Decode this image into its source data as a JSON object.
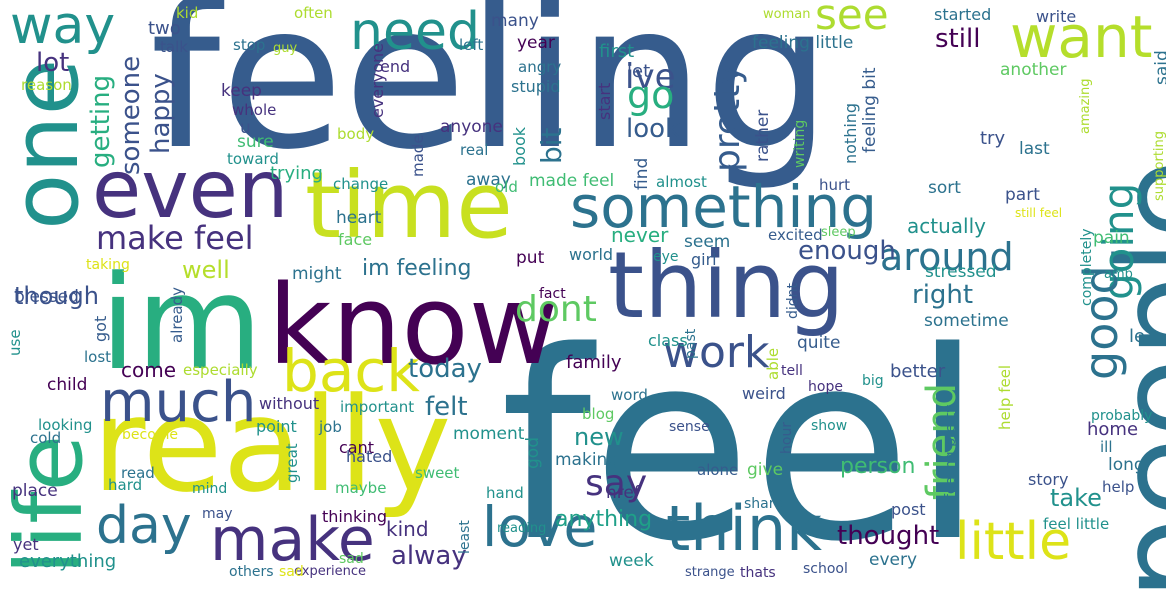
{
  "palette": {
    "dark_purple": "#440154",
    "purple": "#46327e",
    "indigo": "#3b528b",
    "blue": "#365c8d",
    "steel": "#2c728e",
    "teal": "#21918c",
    "sea": "#1fa088",
    "green": "#28ae80",
    "mid_green": "#3fbc73",
    "light_green": "#5ec962",
    "lime": "#addc30",
    "yellow": "#dde318"
  },
  "words": [
    {
      "text": "feeling",
      "color": "#365c8d",
      "vertical": false
    },
    {
      "text": "feel",
      "color": "#2c728e",
      "vertical": false
    },
    {
      "text": "people",
      "color": "#2c728e",
      "vertical": true
    },
    {
      "text": "really",
      "color": "#dde318",
      "vertical": false
    },
    {
      "text": "know",
      "color": "#440154",
      "vertical": false
    },
    {
      "text": "im",
      "color": "#28ae80",
      "vertical": false
    },
    {
      "text": "time",
      "color": "#c8e020",
      "vertical": false
    },
    {
      "text": "thing",
      "color": "#3b528b",
      "vertical": false
    },
    {
      "text": "one",
      "color": "#21918c",
      "vertical": true
    },
    {
      "text": "life",
      "color": "#28ae80",
      "vertical": true
    },
    {
      "text": "even",
      "color": "#46327e",
      "vertical": false
    },
    {
      "text": "something",
      "color": "#2c728e",
      "vertical": false
    },
    {
      "text": "want",
      "color": "#b5de2b",
      "vertical": false
    },
    {
      "text": "need",
      "color": "#21918c",
      "vertical": false
    },
    {
      "text": "way",
      "color": "#21918c",
      "vertical": false
    },
    {
      "text": "see",
      "color": "#addc30",
      "vertical": false
    },
    {
      "text": "going",
      "color": "#21918c",
      "vertical": true
    },
    {
      "text": "back",
      "color": "#dde318",
      "vertical": false
    },
    {
      "text": "much",
      "color": "#3b528b",
      "vertical": false
    },
    {
      "text": "make",
      "color": "#46327e",
      "vertical": false
    },
    {
      "text": "day",
      "color": "#2c728e",
      "vertical": false
    },
    {
      "text": "love",
      "color": "#2c728e",
      "vertical": false
    },
    {
      "text": "think",
      "color": "#2c728e",
      "vertical": false
    },
    {
      "text": "little",
      "color": "#dde318",
      "vertical": false
    },
    {
      "text": "work",
      "color": "#3b528b",
      "vertical": false
    },
    {
      "text": "good",
      "color": "#2c728e",
      "vertical": true
    },
    {
      "text": "friend",
      "color": "#5ec962",
      "vertical": true
    },
    {
      "text": "around",
      "color": "#2c728e",
      "vertical": false
    },
    {
      "text": "make feel",
      "color": "#46327e",
      "vertical": false
    },
    {
      "text": "ive",
      "color": "#3b528b",
      "vertical": false
    },
    {
      "text": "go",
      "color": "#28ae80",
      "vertical": false
    },
    {
      "text": "dont",
      "color": "#5ec962",
      "vertical": false
    },
    {
      "text": "say",
      "color": "#46327e",
      "vertical": false
    },
    {
      "text": "someone",
      "color": "#3b528b",
      "vertical": true
    },
    {
      "text": "pretty",
      "color": "#365c8d",
      "vertical": true
    },
    {
      "text": "im feeling",
      "color": "#2c728e",
      "vertical": false
    },
    {
      "text": "today",
      "color": "#2c728e",
      "vertical": false
    },
    {
      "text": "felt",
      "color": "#2c728e",
      "vertical": false
    },
    {
      "text": "alway",
      "color": "#46327e",
      "vertical": false
    },
    {
      "text": "thought",
      "color": "#440154",
      "vertical": false
    },
    {
      "text": "right",
      "color": "#2c728e",
      "vertical": false
    },
    {
      "text": "look",
      "color": "#365c8d",
      "vertical": false
    },
    {
      "text": "lot",
      "color": "#46327e",
      "vertical": false
    },
    {
      "text": "bit",
      "color": "#2c728e",
      "vertical": true
    },
    {
      "text": "getting",
      "color": "#28ae80",
      "vertical": true
    },
    {
      "text": "happy",
      "color": "#3b528b",
      "vertical": true
    },
    {
      "text": "still",
      "color": "#440154",
      "vertical": false
    },
    {
      "text": "enough",
      "color": "#3b528b",
      "vertical": false
    },
    {
      "text": "well",
      "color": "#b5de2b",
      "vertical": false
    },
    {
      "text": "though",
      "color": "#3b528b",
      "vertical": false
    },
    {
      "text": "take",
      "color": "#21918c",
      "vertical": false
    },
    {
      "text": "new",
      "color": "#21918c",
      "vertical": false
    },
    {
      "text": "come",
      "color": "#440154",
      "vertical": false
    },
    {
      "text": "person",
      "color": "#3fbc73",
      "vertical": false
    },
    {
      "text": "anything",
      "color": "#1fa088",
      "vertical": false
    },
    {
      "text": "actually",
      "color": "#21918c",
      "vertical": false
    },
    {
      "text": "kind",
      "color": "#46327e",
      "vertical": false
    },
    {
      "text": "feeling little",
      "color": "#2c728e",
      "vertical": false
    },
    {
      "text": "year",
      "color": "#440154",
      "vertical": false
    },
    {
      "text": "never",
      "color": "#28ae80",
      "vertical": false
    },
    {
      "text": "family",
      "color": "#440154",
      "vertical": false
    },
    {
      "text": "everything",
      "color": "#21918c",
      "vertical": false
    },
    {
      "text": "trying",
      "color": "#28ae80",
      "vertical": false
    },
    {
      "text": "two",
      "color": "#3b528b",
      "vertical": false
    },
    {
      "text": "stressed",
      "color": "#21918c",
      "vertical": false
    },
    {
      "text": "sometime",
      "color": "#2c728e",
      "vertical": false
    },
    {
      "text": "made feel",
      "color": "#3fbc73",
      "vertical": false
    },
    {
      "text": "quite",
      "color": "#365c8d",
      "vertical": false
    },
    {
      "text": "better",
      "color": "#3b528b",
      "vertical": false
    },
    {
      "text": "home",
      "color": "#46327e",
      "vertical": false
    },
    {
      "text": "write",
      "color": "#3b528b",
      "vertical": false
    },
    {
      "text": "started",
      "color": "#2c728e",
      "vertical": false
    },
    {
      "text": "another",
      "color": "#5ec962",
      "vertical": false
    },
    {
      "text": "first",
      "color": "#21918c",
      "vertical": false
    },
    {
      "text": "let",
      "color": "#3b528b",
      "vertical": false
    },
    {
      "text": "last",
      "color": "#2c728e",
      "vertical": false
    },
    {
      "text": "part",
      "color": "#3b528b",
      "vertical": false
    },
    {
      "text": "sort",
      "color": "#2c728e",
      "vertical": false
    },
    {
      "text": "try",
      "color": "#3b528b",
      "vertical": false
    },
    {
      "text": "pain",
      "color": "#3fbc73",
      "vertical": false
    },
    {
      "text": "long",
      "color": "#2c728e",
      "vertical": false
    },
    {
      "text": "story",
      "color": "#3b528b",
      "vertical": false
    },
    {
      "text": "post",
      "color": "#3b528b",
      "vertical": false
    },
    {
      "text": "every",
      "color": "#2c728e",
      "vertical": false
    },
    {
      "text": "week",
      "color": "#21918c",
      "vertical": false
    },
    {
      "text": "href",
      "color": "#46327e",
      "vertical": false
    },
    {
      "text": "girl",
      "color": "#365c8d",
      "vertical": false
    },
    {
      "text": "seem",
      "color": "#2c728e",
      "vertical": false
    },
    {
      "text": "world",
      "color": "#2c728e",
      "vertical": false
    },
    {
      "text": "put",
      "color": "#440154",
      "vertical": false
    },
    {
      "text": "might",
      "color": "#2c728e",
      "vertical": false
    },
    {
      "text": "heart",
      "color": "#2c728e",
      "vertical": false
    },
    {
      "text": "face",
      "color": "#5ec962",
      "vertical": false
    },
    {
      "text": "away",
      "color": "#2c728e",
      "vertical": false
    },
    {
      "text": "old",
      "color": "#3fbc73",
      "vertical": false
    },
    {
      "text": "hurt",
      "color": "#3b528b",
      "vertical": false
    },
    {
      "text": "almost",
      "color": "#21918c",
      "vertical": false
    },
    {
      "text": "keep",
      "color": "#46327e",
      "vertical": false
    },
    {
      "text": "u",
      "color": "#3b528b",
      "vertical": false
    },
    {
      "text": "sure",
      "color": "#3fbc73",
      "vertical": false
    },
    {
      "text": "toward",
      "color": "#21918c",
      "vertical": false
    },
    {
      "text": "change",
      "color": "#21918c",
      "vertical": false
    },
    {
      "text": "child",
      "color": "#440154",
      "vertical": false
    },
    {
      "text": "place",
      "color": "#46327e",
      "vertical": false
    },
    {
      "text": "without",
      "color": "#46327e",
      "vertical": false
    },
    {
      "text": "point",
      "color": "#21918c",
      "vertical": false
    },
    {
      "text": "cant",
      "color": "#440154",
      "vertical": false
    },
    {
      "text": "moment",
      "color": "#21918c",
      "vertical": false
    },
    {
      "text": "making",
      "color": "#2c728e",
      "vertical": false
    },
    {
      "text": "give",
      "color": "#5ec962",
      "vertical": false
    },
    {
      "text": "hand",
      "color": "#21918c",
      "vertical": false
    },
    {
      "text": "thinking",
      "color": "#440154",
      "vertical": false
    },
    {
      "text": "yet",
      "color": "#46327e",
      "vertical": false
    },
    {
      "text": "hard",
      "color": "#21918c",
      "vertical": false
    },
    {
      "text": "read",
      "color": "#2c728e",
      "vertical": false
    },
    {
      "text": "looking",
      "color": "#21918c",
      "vertical": false
    },
    {
      "text": "cold",
      "color": "#2c728e",
      "vertical": false
    },
    {
      "text": "blessed",
      "color": "#3b528b",
      "vertical": false
    },
    {
      "text": "use",
      "color": "#21918c",
      "vertical": true
    },
    {
      "text": "got",
      "color": "#365c8d",
      "vertical": true
    },
    {
      "text": "lost",
      "color": "#2c728e",
      "vertical": false
    },
    {
      "text": "already",
      "color": "#365c8d",
      "vertical": true
    },
    {
      "text": "especially",
      "color": "#addc30",
      "vertical": false
    },
    {
      "text": "important",
      "color": "#21918c",
      "vertical": false
    },
    {
      "text": "sweet",
      "color": "#3fbc73",
      "vertical": false
    },
    {
      "text": "job",
      "color": "#2c728e",
      "vertical": false
    },
    {
      "text": "hated",
      "color": "#3b528b",
      "vertical": false
    },
    {
      "text": "maybe",
      "color": "#3fbc73",
      "vertical": false
    },
    {
      "text": "great",
      "color": "#21918c",
      "vertical": true
    },
    {
      "text": "mind",
      "color": "#21918c",
      "vertical": false
    },
    {
      "text": "may",
      "color": "#3b528b",
      "vertical": false
    },
    {
      "text": "sad",
      "color": "#5ec962",
      "vertical": false
    },
    {
      "text": "others",
      "color": "#2c728e",
      "vertical": false
    },
    {
      "text": "experience",
      "color": "#46327e",
      "vertical": false
    },
    {
      "text": "reading",
      "color": "#21918c",
      "vertical": false
    },
    {
      "text": "strange",
      "color": "#3b528b",
      "vertical": false
    },
    {
      "text": "thats",
      "color": "#46327e",
      "vertical": false
    },
    {
      "text": "school",
      "color": "#3b528b",
      "vertical": false
    },
    {
      "text": "share",
      "color": "#2c728e",
      "vertical": false
    },
    {
      "text": "alone",
      "color": "#365c8d",
      "vertical": false
    },
    {
      "text": "sense",
      "color": "#3b528b",
      "vertical": false
    },
    {
      "text": "show",
      "color": "#21918c",
      "vertical": false
    },
    {
      "text": "hour",
      "color": "#365c8d",
      "vertical": true
    },
    {
      "text": "weird",
      "color": "#3b528b",
      "vertical": false
    },
    {
      "text": "tell",
      "color": "#46327e",
      "vertical": false
    },
    {
      "text": "able",
      "color": "#addc30",
      "vertical": true
    },
    {
      "text": "didnt",
      "color": "#365c8d",
      "vertical": true
    },
    {
      "text": "big",
      "color": "#21918c",
      "vertical": false
    },
    {
      "text": "hope",
      "color": "#46327e",
      "vertical": false
    },
    {
      "text": "past",
      "color": "#2c728e",
      "vertical": true
    },
    {
      "text": "class",
      "color": "#21918c",
      "vertical": false
    },
    {
      "text": "eye",
      "color": "#21918c",
      "vertical": false
    },
    {
      "text": "fact",
      "color": "#440154",
      "vertical": false
    },
    {
      "text": "word",
      "color": "#2c728e",
      "vertical": false
    },
    {
      "text": "blog",
      "color": "#5ec962",
      "vertical": false
    },
    {
      "text": "god",
      "color": "#21918c",
      "vertical": true
    },
    {
      "text": "least",
      "color": "#2c728e",
      "vertical": true
    },
    {
      "text": "excited",
      "color": "#365c8d",
      "vertical": false
    },
    {
      "text": "sleep",
      "color": "#5ec962",
      "vertical": false
    },
    {
      "text": "completely",
      "color": "#21918c",
      "vertical": true
    },
    {
      "text": "help feel",
      "color": "#addc30",
      "vertical": true
    },
    {
      "text": "feeling pretty",
      "color": "#2c728e",
      "vertical": true
    },
    {
      "text": "probably",
      "color": "#21918c",
      "vertical": false
    },
    {
      "text": "ill",
      "color": "#2c728e",
      "vertical": false
    },
    {
      "text": "help",
      "color": "#3b528b",
      "vertical": false
    },
    {
      "text": "feel little",
      "color": "#21918c",
      "vertical": false
    },
    {
      "text": "said",
      "color": "#2c728e",
      "vertical": true
    },
    {
      "text": "le",
      "color": "#2c728e",
      "vertical": false
    },
    {
      "text": "amp",
      "color": "#21918c",
      "vertical": false
    },
    {
      "text": "still feel",
      "color": "#dde318",
      "vertical": false
    },
    {
      "text": "supporting",
      "color": "#addc30",
      "vertical": true
    },
    {
      "text": "amazing",
      "color": "#addc30",
      "vertical": true
    },
    {
      "text": "sad",
      "color": "#dde318",
      "vertical": false
    },
    {
      "text": "feeling bit",
      "color": "#365c8d",
      "vertical": true
    },
    {
      "text": "nothing",
      "color": "#2c728e",
      "vertical": true
    },
    {
      "text": "writing",
      "color": "#5ec962",
      "vertical": true
    },
    {
      "text": "rather",
      "color": "#3b528b",
      "vertical": true
    },
    {
      "text": "find",
      "color": "#365c8d",
      "vertical": true
    },
    {
      "text": "start",
      "color": "#46327e",
      "vertical": true
    },
    {
      "text": "angry",
      "color": "#2c728e",
      "vertical": false
    },
    {
      "text": "stupid",
      "color": "#2c728e",
      "vertical": false
    },
    {
      "text": "book",
      "color": "#21918c",
      "vertical": true
    },
    {
      "text": "real",
      "color": "#2c728e",
      "vertical": false
    },
    {
      "text": "anyone",
      "color": "#46327e",
      "vertical": false
    },
    {
      "text": "everyone",
      "color": "#46327e",
      "vertical": true
    },
    {
      "text": "made",
      "color": "#3b528b",
      "vertical": true
    },
    {
      "text": "end",
      "color": "#46327e",
      "vertical": false
    },
    {
      "text": "body",
      "color": "#addc30",
      "vertical": false
    },
    {
      "text": "whole",
      "color": "#46327e",
      "vertical": false
    },
    {
      "text": "many",
      "color": "#3b528b",
      "vertical": false
    },
    {
      "text": "left",
      "color": "#2c728e",
      "vertical": false
    },
    {
      "text": "often",
      "color": "#addc30",
      "vertical": false
    },
    {
      "text": "guy",
      "color": "#addc30",
      "vertical": false
    },
    {
      "text": "stop",
      "color": "#2c728e",
      "vertical": false
    },
    {
      "text": "talk",
      "color": "#3b528b",
      "vertical": false
    },
    {
      "text": "kid",
      "color": "#addc30",
      "vertical": false
    },
    {
      "text": "reason",
      "color": "#addc30",
      "vertical": false
    },
    {
      "text": "woman",
      "color": "#addc30",
      "vertical": false
    },
    {
      "text": "taking",
      "color": "#dde318",
      "vertical": false
    },
    {
      "text": "become",
      "color": "#dde318",
      "vertical": false
    }
  ]
}
